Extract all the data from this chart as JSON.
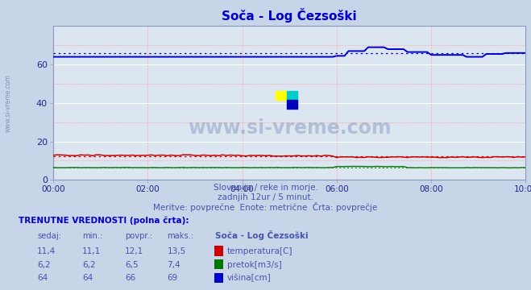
{
  "title": "Soča - Log Čezsoški",
  "title_color": "#0000cc",
  "subtitle1": "Slovenija / reke in morje.",
  "subtitle2": "zadnjih 12ur / 5 minut.",
  "subtitle3": "Meritve: povprečne  Enote: metrične  Črta: povprečje",
  "subtitle_color": "#4455aa",
  "bg_color": "#c8d4e8",
  "plot_bg_color": "#dce6f0",
  "xlim": [
    0,
    120
  ],
  "ylim": [
    0,
    80
  ],
  "yticks": [
    0,
    20,
    40,
    60
  ],
  "xtick_labels": [
    "00:00",
    "02:00",
    "04:00",
    "06:00",
    "08:00",
    "10:00"
  ],
  "xtick_positions": [
    0,
    24,
    48,
    72,
    96,
    120
  ],
  "watermark_text": "www.si-vreme.com",
  "watermark_color": "#1a3a7a",
  "watermark_alpha": 0.22,
  "sidebar_text": "www.si-vreme.com",
  "sidebar_color": "#7788aa",
  "temp_color": "#cc0000",
  "flow_color": "#007700",
  "height_color": "#0000cc",
  "temp_avg": 12.1,
  "flow_avg": 6.5,
  "height_avg": 66.0,
  "table_title": "TRENUTNE VREDNOSTI (polna črta):",
  "col_headers": [
    "sedaj:",
    "min.:",
    "povpr.:",
    "maks.:",
    "Soča - Log Čezsoški"
  ],
  "row1": [
    "11,4",
    "11,1",
    "12,1",
    "13,5"
  ],
  "row2": [
    "6,2",
    "6,2",
    "6,5",
    "7,4"
  ],
  "row3": [
    "64",
    "64",
    "66",
    "69"
  ],
  "legend1": "temperatura[C]",
  "legend2": "pretok[m3/s]",
  "legend3": "višina[cm]"
}
